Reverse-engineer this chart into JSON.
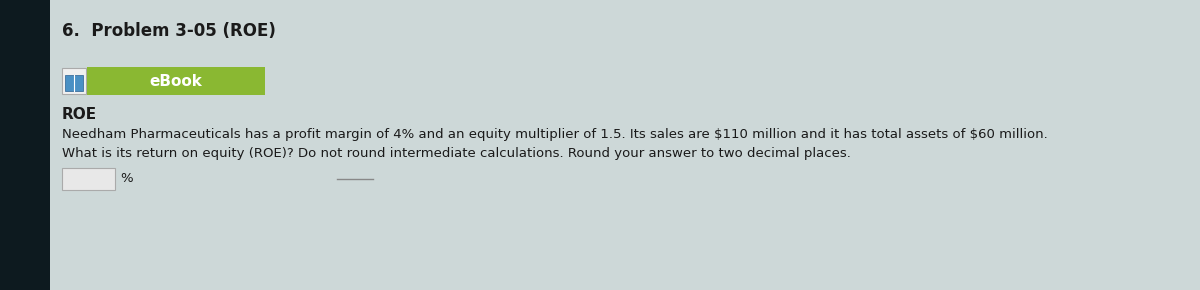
{
  "title": "6.  Problem 3-05 (ROE)",
  "title_fontsize": 12,
  "title_fontweight": "bold",
  "ebook_label": "eBook",
  "ebook_bg_color": "#8ab832",
  "ebook_text_color": "#ffffff",
  "roe_label": "ROE",
  "body_text_line1": "Needham Pharmaceuticals has a profit margin of 4% and an equity multiplier of 1.5. Its sales are $110 million and it has total assets of $60 million.",
  "body_text_line2": "What is its return on equity (ROE)? Do not round intermediate calculations. Round your answer to two decimal places.",
  "input_box_label": "%",
  "background_color": "#cdd8d8",
  "left_panel_color": "#0d1a1f",
  "text_color": "#1a1a1a",
  "body_fontsize": 9.5,
  "roe_fontsize": 11,
  "icon_border_color": "#4a90c4",
  "icon_bg_color": "#f0f0f0"
}
